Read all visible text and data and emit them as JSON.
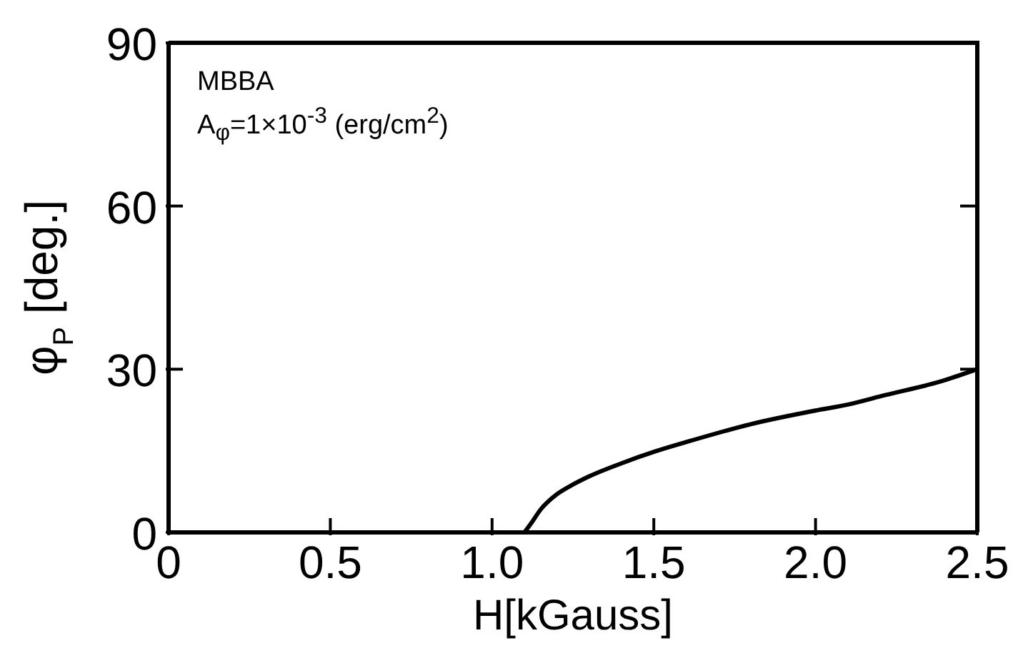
{
  "chart_data": {
    "type": "line",
    "xlabel": "H[kGauss]",
    "ylabel": "φ$_{P}$ [deg.]",
    "annotations": [
      "MBBA",
      "A$_{φ}$=1×10$^{-3}$ (erg/cm$^{2}$)"
    ],
    "series": [
      {
        "color": "#000000",
        "x": [
          1.1,
          1.12,
          1.15,
          1.2,
          1.25,
          1.3,
          1.4,
          1.5,
          1.6,
          1.8,
          2.0,
          2.1,
          2.2,
          2.4,
          2.5
        ],
        "values": [
          0,
          1.6,
          4.2,
          7,
          8.8,
          10.3,
          12.7,
          14.8,
          16.6,
          19.9,
          22.4,
          23.5,
          25,
          28,
          30
        ]
      }
    ],
    "xlim": [
      0,
      2.5
    ],
    "xticks": [
      0,
      0.5,
      {
        "value": 1,
        "label": "1.0"
      },
      1.5,
      {
        "value": 2,
        "label": "2.0"
      },
      2.5
    ],
    "ylim": [
      0,
      90
    ],
    "yticks": [
      0,
      30,
      60,
      90
    ],
    "marker": "none",
    "line_style": "solid"
  }
}
